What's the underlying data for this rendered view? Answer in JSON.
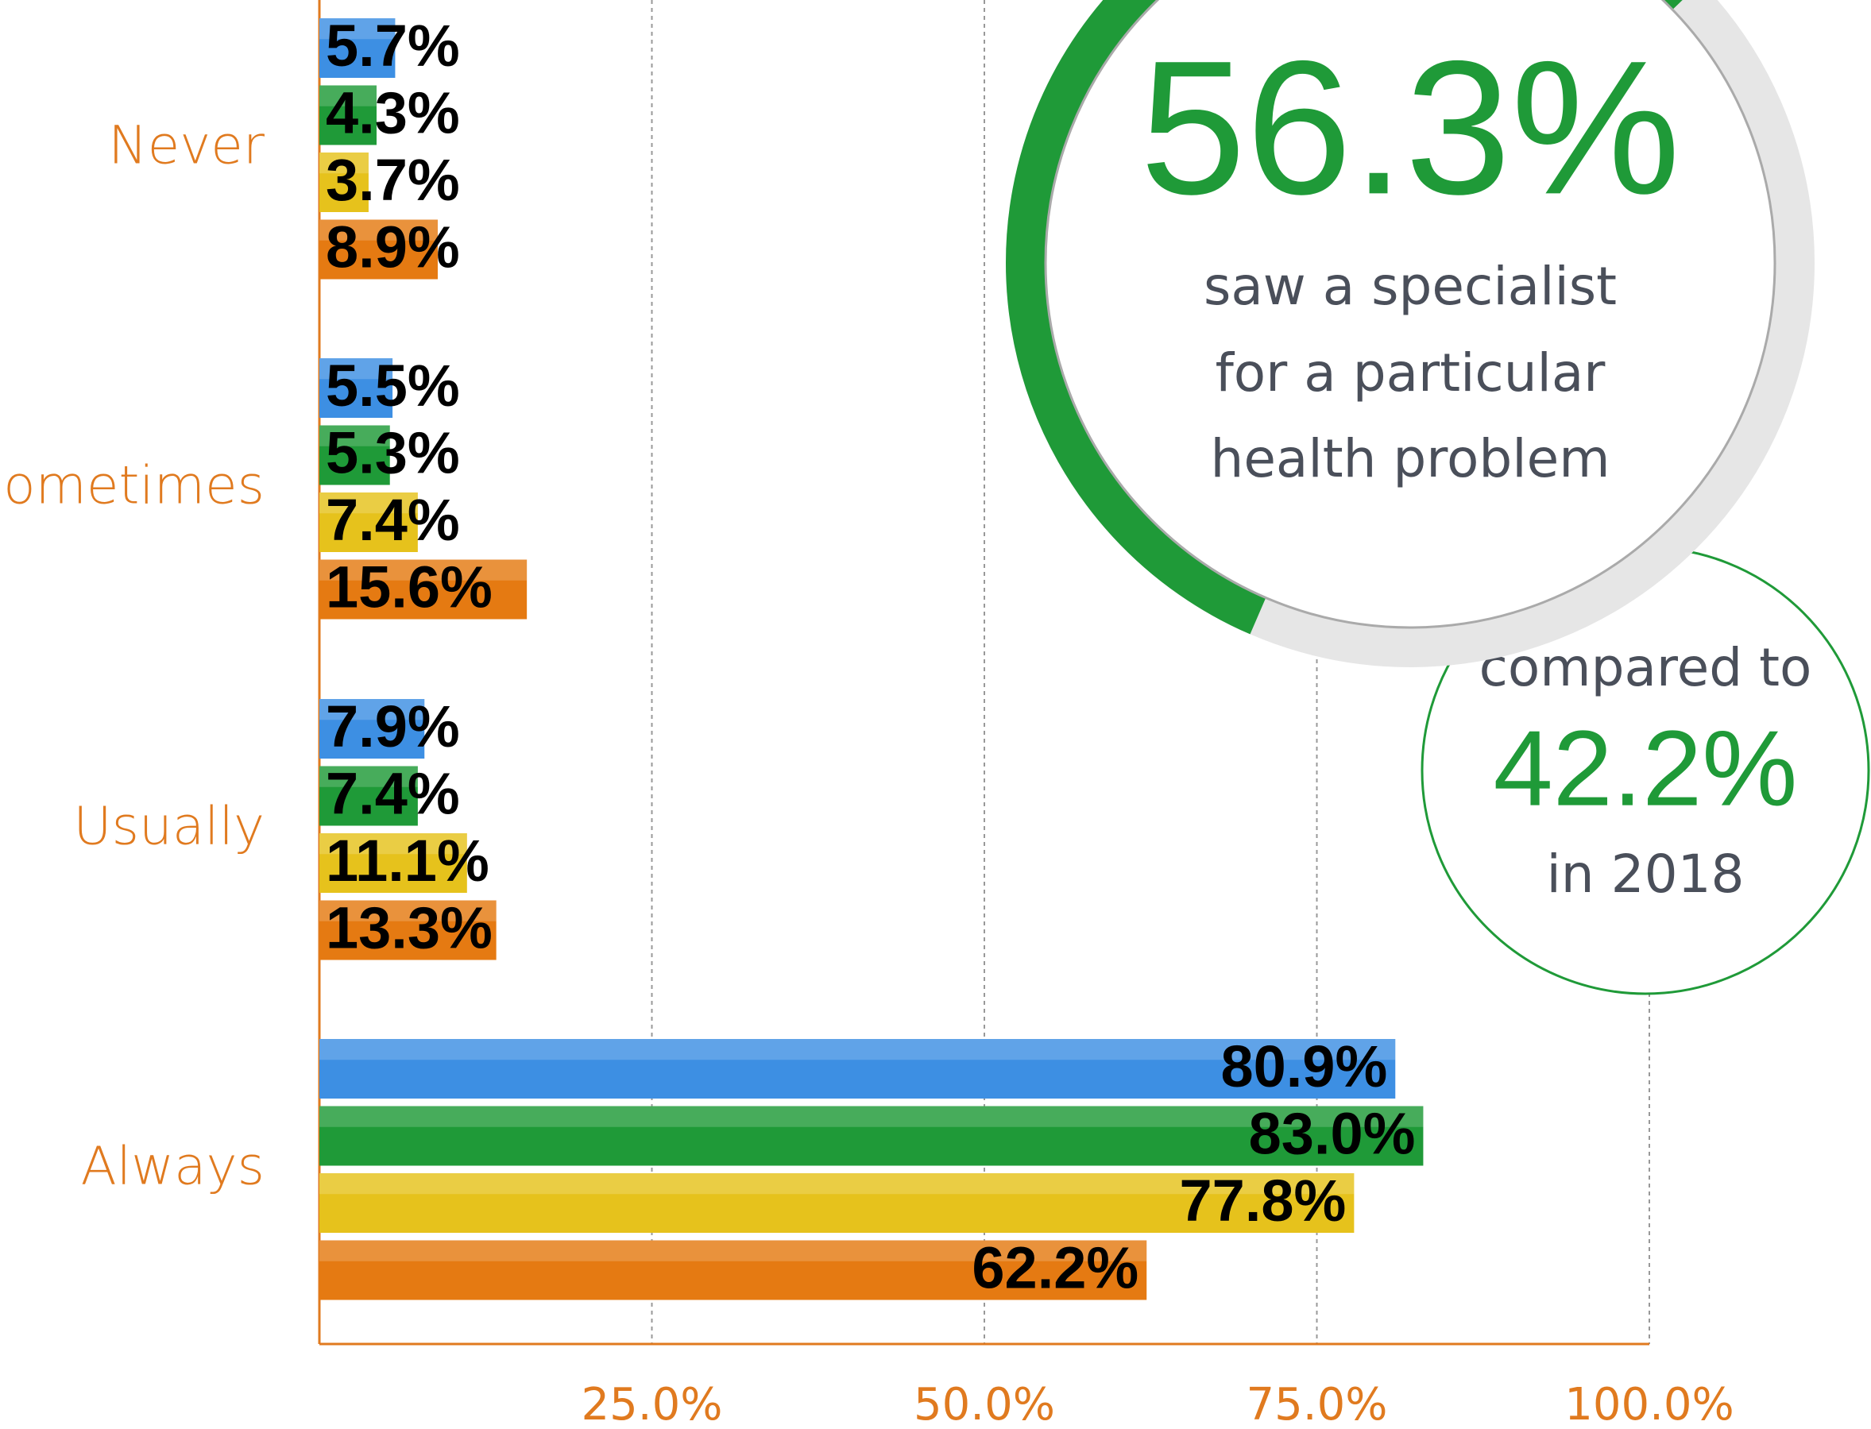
{
  "chart_data": {
    "type": "bar",
    "categories": [
      "Never",
      "Sometimes",
      "Usually",
      "Always"
    ],
    "series": [
      {
        "color": "#3d8fe3",
        "values": [
          5.7,
          5.5,
          7.9,
          80.9
        ],
        "value_labels": [
          "5.7%",
          "5.5%",
          "7.9%",
          "80.9%"
        ]
      },
      {
        "color": "#1f9a38",
        "values": [
          4.3,
          5.3,
          7.4,
          83.0
        ],
        "value_labels": [
          "4.3%",
          "5.3%",
          "7.4%",
          "83.0%"
        ]
      },
      {
        "color": "#e6c21c",
        "values": [
          3.7,
          7.4,
          11.1,
          77.8
        ],
        "value_labels": [
          "3.7%",
          "7.4%",
          "11.1%",
          "77.8%"
        ]
      },
      {
        "color": "#e57a12",
        "values": [
          8.9,
          15.6,
          13.3,
          62.2
        ],
        "value_labels": [
          "8.9%",
          "15.6%",
          "13.3%",
          "62.2%"
        ]
      }
    ],
    "xlim": [
      0,
      100
    ],
    "xticks": [
      {
        "value": 25,
        "label": "25.0%"
      },
      {
        "value": 50,
        "label": "50.0%"
      },
      {
        "value": 75,
        "label": "75.0%"
      },
      {
        "value": 100,
        "label": "100.0%"
      }
    ],
    "grid": true,
    "callout": {
      "value": 56.3,
      "label": "56.3%",
      "color": "#1f9a38",
      "lines": [
        "saw a specialist",
        "for a particular",
        "health problem"
      ]
    },
    "comparison": {
      "before": "compared to",
      "label": "42.2%",
      "after": "in 2018"
    }
  }
}
